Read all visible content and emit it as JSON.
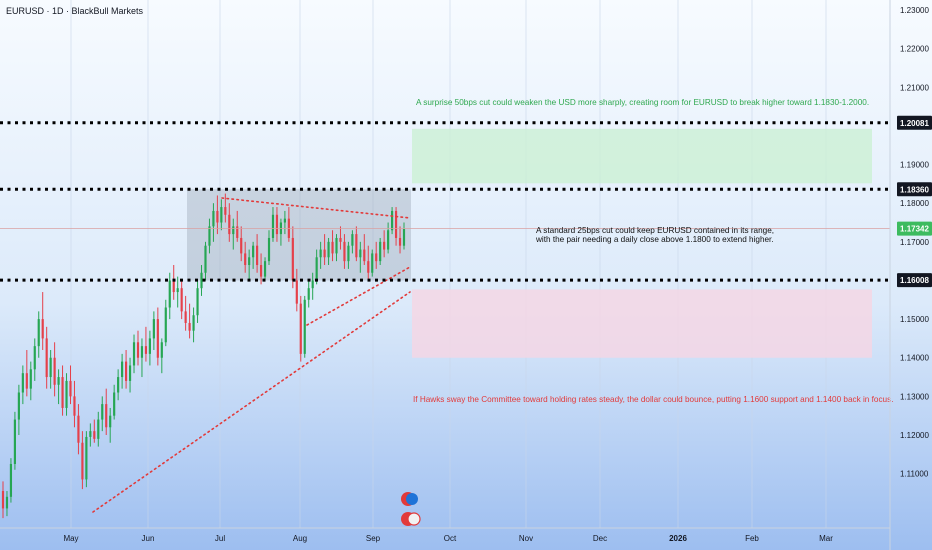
{
  "header": {
    "title": "EURUSD · 1D · BlackBull Markets"
  },
  "colors": {
    "up": "#26a653",
    "down": "#e5404a",
    "green_zone": "#c9f0d2",
    "red_zone": "#f6d6e4",
    "range_box": "#8d99a8",
    "trendline": "#e23a3a",
    "last_price_tag": "#3dbb5f",
    "level_tag": "#131722"
  },
  "chart_data": {
    "type": "candlestick",
    "x_ticks": [
      "May",
      "Jun",
      "Jul",
      "Aug",
      "Sep",
      "Oct",
      "Nov",
      "Dec",
      "2026",
      "Feb",
      "Mar"
    ],
    "y_ticks": [
      "1.23000",
      "1.22000",
      "1.21000",
      "1.20000",
      "1.19000",
      "1.18000",
      "1.17000",
      "1.16000",
      "1.15000",
      "1.14000",
      "1.13000",
      "1.12000",
      "1.11000"
    ],
    "y_range": [
      1.098,
      1.2313
    ],
    "price_levels": [
      {
        "label": "1.20081",
        "value": 1.20081
      },
      {
        "label": "1.18360",
        "value": 1.1836
      },
      {
        "label": "1.16008",
        "value": 1.16008
      }
    ],
    "last_price": {
      "label": "1.17342",
      "value": 1.17342
    },
    "annotations": {
      "bullish": "A surprise 50bps cut could weaken the USD more sharply, creating room for EURUSD to break higher toward 1.1830-1.2000.",
      "neutral_line1": "A standard 25bps cut could keep EURUSD contained in its range,",
      "neutral_line2": "with the pair needing a daily close above 1.1800 to extend higher.",
      "bearish": "If Hawks sway the Committee toward holding rates steady, the dollar could bounce, putting 1.1600 support and 1.1400 back in focus."
    },
    "candles": [
      [
        1.1055,
        1.108,
        1.0985,
        1.101
      ],
      [
        1.101,
        1.1055,
        1.099,
        1.104
      ],
      [
        1.104,
        1.114,
        1.1025,
        1.1125
      ],
      [
        1.1125,
        1.126,
        1.111,
        1.124
      ],
      [
        1.124,
        1.133,
        1.12,
        1.131
      ],
      [
        1.131,
        1.138,
        1.128,
        1.136
      ],
      [
        1.136,
        1.142,
        1.13,
        1.132
      ],
      [
        1.132,
        1.139,
        1.129,
        1.137
      ],
      [
        1.137,
        1.145,
        1.134,
        1.143
      ],
      [
        1.143,
        1.152,
        1.14,
        1.15
      ],
      [
        1.15,
        1.157,
        1.142,
        1.145
      ],
      [
        1.145,
        1.148,
        1.132,
        1.135
      ],
      [
        1.135,
        1.142,
        1.132,
        1.14
      ],
      [
        1.14,
        1.144,
        1.13,
        1.133
      ],
      [
        1.133,
        1.137,
        1.128,
        1.135
      ],
      [
        1.135,
        1.138,
        1.125,
        1.127
      ],
      [
        1.127,
        1.136,
        1.125,
        1.134
      ],
      [
        1.134,
        1.138,
        1.128,
        1.13
      ],
      [
        1.13,
        1.134,
        1.122,
        1.125
      ],
      [
        1.125,
        1.128,
        1.115,
        1.118
      ],
      [
        1.118,
        1.121,
        1.106,
        1.1085
      ],
      [
        1.1085,
        1.121,
        1.1065,
        1.1195
      ],
      [
        1.1195,
        1.123,
        1.117,
        1.121
      ],
      [
        1.121,
        1.124,
        1.118,
        1.119
      ],
      [
        1.119,
        1.126,
        1.117,
        1.124
      ],
      [
        1.124,
        1.13,
        1.121,
        1.128
      ],
      [
        1.128,
        1.132,
        1.12,
        1.122
      ],
      [
        1.122,
        1.127,
        1.118,
        1.125
      ],
      [
        1.125,
        1.133,
        1.124,
        1.131
      ],
      [
        1.131,
        1.137,
        1.129,
        1.135
      ],
      [
        1.135,
        1.141,
        1.132,
        1.139
      ],
      [
        1.139,
        1.142,
        1.132,
        1.134
      ],
      [
        1.134,
        1.14,
        1.131,
        1.138
      ],
      [
        1.138,
        1.146,
        1.136,
        1.144
      ],
      [
        1.144,
        1.147,
        1.138,
        1.14
      ],
      [
        1.14,
        1.145,
        1.135,
        1.143
      ],
      [
        1.143,
        1.148,
        1.139,
        1.141
      ],
      [
        1.141,
        1.147,
        1.138,
        1.145
      ],
      [
        1.145,
        1.152,
        1.142,
        1.15
      ],
      [
        1.15,
        1.153,
        1.138,
        1.14
      ],
      [
        1.14,
        1.145,
        1.136,
        1.144
      ],
      [
        1.144,
        1.155,
        1.143,
        1.153
      ],
      [
        1.153,
        1.162,
        1.15,
        1.16
      ],
      [
        1.16,
        1.164,
        1.155,
        1.157
      ],
      [
        1.157,
        1.161,
        1.153,
        1.158
      ],
      [
        1.158,
        1.16,
        1.15,
        1.152
      ],
      [
        1.152,
        1.156,
        1.147,
        1.149
      ],
      [
        1.149,
        1.154,
        1.145,
        1.147
      ],
      [
        1.147,
        1.153,
        1.144,
        1.151
      ],
      [
        1.151,
        1.16,
        1.149,
        1.158
      ],
      [
        1.158,
        1.164,
        1.156,
        1.162
      ],
      [
        1.162,
        1.17,
        1.16,
        1.169
      ],
      [
        1.169,
        1.176,
        1.167,
        1.174
      ],
      [
        1.174,
        1.18,
        1.17,
        1.178
      ],
      [
        1.178,
        1.182,
        1.172,
        1.175
      ],
      [
        1.175,
        1.181,
        1.173,
        1.179
      ],
      [
        1.179,
        1.1825,
        1.175,
        1.177
      ],
      [
        1.177,
        1.18,
        1.17,
        1.172
      ],
      [
        1.172,
        1.176,
        1.168,
        1.174
      ],
      [
        1.174,
        1.178,
        1.17,
        1.171
      ],
      [
        1.171,
        1.174,
        1.165,
        1.167
      ],
      [
        1.167,
        1.17,
        1.162,
        1.164
      ],
      [
        1.164,
        1.168,
        1.16,
        1.166
      ],
      [
        1.166,
        1.17,
        1.163,
        1.169
      ],
      [
        1.169,
        1.172,
        1.162,
        1.164
      ],
      [
        1.164,
        1.167,
        1.159,
        1.161
      ],
      [
        1.161,
        1.166,
        1.16,
        1.165
      ],
      [
        1.165,
        1.173,
        1.164,
        1.171
      ],
      [
        1.171,
        1.179,
        1.17,
        1.177
      ],
      [
        1.177,
        1.179,
        1.17,
        1.172
      ],
      [
        1.172,
        1.176,
        1.169,
        1.175
      ],
      [
        1.175,
        1.178,
        1.172,
        1.176
      ],
      [
        1.176,
        1.179,
        1.17,
        1.171
      ],
      [
        1.171,
        1.174,
        1.158,
        1.16
      ],
      [
        1.16,
        1.163,
        1.152,
        1.154
      ],
      [
        1.154,
        1.156,
        1.139,
        1.141
      ],
      [
        1.141,
        1.156,
        1.14,
        1.155
      ],
      [
        1.155,
        1.16,
        1.153,
        1.158
      ],
      [
        1.158,
        1.162,
        1.155,
        1.16
      ],
      [
        1.16,
        1.168,
        1.159,
        1.166
      ],
      [
        1.166,
        1.17,
        1.163,
        1.168
      ],
      [
        1.168,
        1.172,
        1.164,
        1.166
      ],
      [
        1.166,
        1.171,
        1.164,
        1.17
      ],
      [
        1.17,
        1.173,
        1.165,
        1.167
      ],
      [
        1.167,
        1.172,
        1.165,
        1.171
      ],
      [
        1.171,
        1.174,
        1.168,
        1.17
      ],
      [
        1.17,
        1.172,
        1.163,
        1.165
      ],
      [
        1.165,
        1.17,
        1.163,
        1.169
      ],
      [
        1.169,
        1.173,
        1.167,
        1.172
      ],
      [
        1.172,
        1.174,
        1.165,
        1.166
      ],
      [
        1.166,
        1.17,
        1.162,
        1.168
      ],
      [
        1.168,
        1.172,
        1.164,
        1.165
      ],
      [
        1.165,
        1.169,
        1.16,
        1.162
      ],
      [
        1.162,
        1.168,
        1.161,
        1.167
      ],
      [
        1.167,
        1.17,
        1.163,
        1.165
      ],
      [
        1.165,
        1.171,
        1.164,
        1.17
      ],
      [
        1.17,
        1.173,
        1.166,
        1.168
      ],
      [
        1.168,
        1.175,
        1.167,
        1.173
      ],
      [
        1.173,
        1.179,
        1.172,
        1.178
      ],
      [
        1.178,
        1.179,
        1.169,
        1.171
      ],
      [
        1.171,
        1.174,
        1.167,
        1.169
      ],
      [
        1.169,
        1.175,
        1.168,
        1.1734
      ]
    ]
  }
}
